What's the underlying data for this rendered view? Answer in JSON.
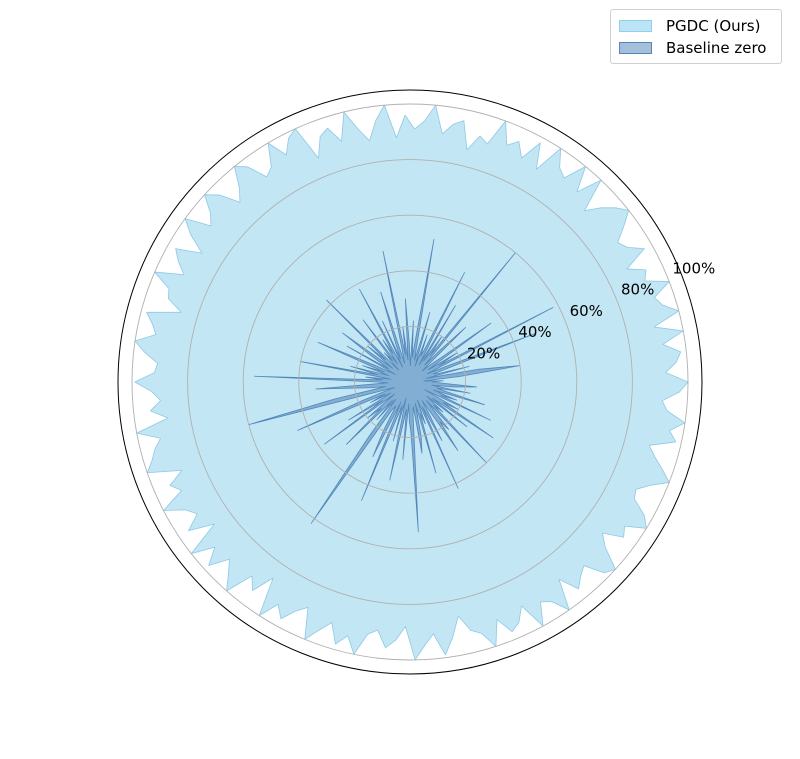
{
  "chart_data": {
    "type": "radar",
    "rlim": [
      0,
      100
    ],
    "r_ticks": [
      20,
      40,
      60,
      80,
      100
    ],
    "r_tick_labels": [
      "20%",
      "40%",
      "60%",
      "80%",
      "100%"
    ],
    "grid": true,
    "legend_position": "top-right",
    "series": [
      {
        "name": "PGDC (Ours)",
        "color": "#87CEEB",
        "values": [
          100,
          92,
          96,
          98,
          92,
          100,
          90,
          100,
          95,
          93,
          100,
          92,
          94,
          88,
          97,
          92,
          90,
          95,
          100,
          97,
          93,
          88,
          100,
          91,
          100,
          92,
          94,
          100,
          89,
          98,
          90,
          95,
          92,
          100,
          90,
          92,
          86,
          96,
          94,
          90,
          100,
          94,
          91,
          96,
          88,
          100,
          95,
          88,
          93,
          100,
          90,
          96,
          94,
          87,
          100,
          98,
          93,
          100,
          92,
          90,
          97,
          100,
          93,
          89,
          96,
          100,
          94,
          91,
          100,
          95,
          88,
          97,
          94,
          90,
          100,
          93,
          92,
          86,
          98,
          95,
          93,
          100,
          96,
          91,
          92,
          99,
          93,
          90,
          94,
          88,
          100,
          92,
          95,
          97,
          100,
          88,
          94,
          91,
          100,
          93,
          90,
          96,
          87,
          100,
          92,
          98,
          91,
          95,
          100,
          90,
          94,
          86,
          100,
          93,
          97,
          92,
          89,
          100,
          95,
          91,
          98,
          94,
          100,
          92,
          90,
          96,
          93,
          88,
          100,
          95,
          91,
          99,
          93,
          86,
          92,
          94,
          100,
          91,
          97,
          95,
          90,
          100,
          92,
          94,
          100,
          89,
          96,
          93,
          91,
          98,
          100,
          92,
          88,
          95,
          93,
          100,
          97,
          91,
          90,
          94,
          100,
          96,
          92,
          89,
          98,
          95,
          100,
          93,
          91,
          97
        ]
      },
      {
        "name": "Baseline zero",
        "color": "#4A7FB5",
        "values": [
          8,
          12,
          5,
          18,
          40,
          25,
          6,
          22,
          10,
          9,
          48,
          15,
          7,
          58,
          12,
          20,
          8,
          36,
          14,
          10,
          6,
          28,
          16,
          8,
          60,
          12,
          20,
          9,
          32,
          7,
          44,
          14,
          10,
          18,
          6,
          26,
          12,
          8,
          52,
          16,
          9,
          22,
          6,
          14,
          30,
          8,
          20,
          10,
          48,
          12,
          7,
          34,
          16,
          9,
          24,
          6,
          38,
          12,
          18,
          8,
          28,
          10,
          14,
          6,
          42,
          12,
          20,
          8,
          30,
          16,
          9,
          26,
          6,
          14,
          36,
          10,
          18,
          8,
          22,
          12,
          40,
          7,
          16,
          10,
          56,
          12,
          8,
          34,
          20,
          14,
          9,
          28,
          60,
          12,
          6,
          18,
          44,
          10,
          16,
          8,
          26,
          12,
          38,
          7,
          20,
          14,
          32,
          9,
          18,
          8,
          24,
          62,
          12,
          10,
          20,
          30,
          8,
          46,
          14,
          9,
          22,
          6,
          36,
          16,
          10,
          28,
          8,
          14,
          18,
          54,
          12,
          9,
          26,
          20,
          8,
          34,
          12,
          16,
          7,
          42,
          10,
          24,
          14,
          8,
          30,
          18,
          22,
          9,
          40,
          12,
          16,
          8,
          26,
          10,
          36,
          14,
          20,
          6,
          32,
          12,
          18,
          9,
          28,
          14,
          10,
          22,
          8,
          16,
          24,
          12
        ]
      }
    ]
  }
}
